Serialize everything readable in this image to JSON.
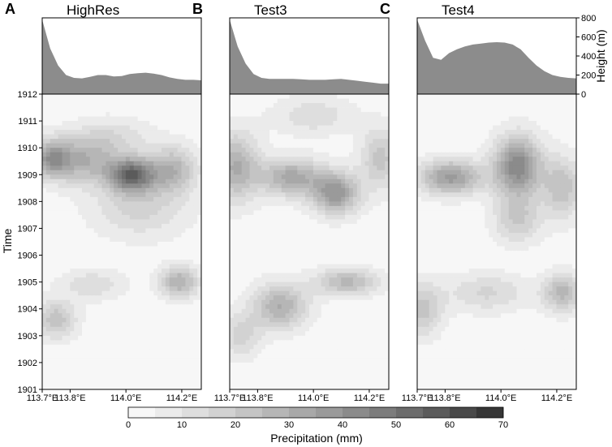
{
  "chart_data": {
    "type": "heatmap",
    "colorbar": {
      "label": "Precipitation (mm)",
      "ticks": [
        "0",
        "10",
        "20",
        "30",
        "40",
        "50",
        "60",
        "70"
      ],
      "levels": [
        0,
        5,
        10,
        15,
        20,
        25,
        30,
        35,
        40,
        45,
        50,
        55,
        60,
        65,
        70
      ],
      "colors": [
        "#f7f7f7",
        "#ebebeb",
        "#dedede",
        "#d2d2d2",
        "#c4c4c4",
        "#b6b6b6",
        "#a8a8a8",
        "#9a9a9a",
        "#8b8b8b",
        "#7c7c7c",
        "#6c6c6c",
        "#5b5b5b",
        "#494949",
        "#363636"
      ]
    },
    "y_axis": {
      "label": "Time",
      "ticks": [
        "1912",
        "1911",
        "1910",
        "1909",
        "1908",
        "1907",
        "1906",
        "1905",
        "1904",
        "1903",
        "1902",
        "1901"
      ]
    },
    "x_axis": {
      "ticks": [
        "113.7°E",
        "113.8°E",
        "114.0°E",
        "114.2°E"
      ],
      "lon_values": [
        113.7,
        113.8,
        114.0,
        114.2
      ],
      "range": [
        113.7,
        114.27
      ]
    },
    "height_axis": {
      "label": "Height (m)",
      "ticks": [
        "800",
        "600",
        "400",
        "200",
        "0"
      ],
      "range": [
        0,
        800
      ]
    },
    "panels": [
      {
        "letter": "A",
        "title": "HighRes",
        "terrain_m": [
          780,
          480,
          300,
          200,
          170,
          165,
          180,
          200,
          200,
          185,
          190,
          210,
          220,
          225,
          215,
          200,
          175,
          160,
          150,
          150,
          145
        ],
        "precip_blobs": [
          {
            "lon": 113.73,
            "time": 1909.6,
            "amp": 32,
            "slon": 0.05,
            "stime": 0.5
          },
          {
            "lon": 113.85,
            "time": 1909.5,
            "amp": 25,
            "slon": 0.08,
            "stime": 0.6
          },
          {
            "lon": 114.02,
            "time": 1909.0,
            "amp": 48,
            "slon": 0.06,
            "stime": 0.45
          },
          {
            "lon": 114.17,
            "time": 1909.2,
            "amp": 25,
            "slon": 0.06,
            "stime": 0.6
          },
          {
            "lon": 113.75,
            "time": 1903.6,
            "amp": 22,
            "slon": 0.05,
            "stime": 0.5
          },
          {
            "lon": 113.88,
            "time": 1904.9,
            "amp": 12,
            "slon": 0.08,
            "stime": 0.4
          },
          {
            "lon": 114.19,
            "time": 1905.0,
            "amp": 28,
            "slon": 0.05,
            "stime": 0.4
          },
          {
            "lon": 114.05,
            "time": 1907.8,
            "amp": 15,
            "slon": 0.12,
            "stime": 0.8
          },
          {
            "lon": 113.95,
            "time": 1910.4,
            "amp": 12,
            "slon": 0.1,
            "stime": 0.5
          }
        ]
      },
      {
        "letter": "B",
        "title": "Test3",
        "terrain_m": [
          780,
          500,
          320,
          210,
          170,
          160,
          160,
          160,
          160,
          155,
          150,
          150,
          150,
          155,
          160,
          150,
          140,
          130,
          120,
          110,
          110
        ],
        "precip_blobs": [
          {
            "lon": 113.72,
            "time": 1909.3,
            "amp": 28,
            "slon": 0.06,
            "stime": 0.9
          },
          {
            "lon": 113.92,
            "time": 1908.9,
            "amp": 30,
            "slon": 0.08,
            "stime": 0.5
          },
          {
            "lon": 114.08,
            "time": 1908.3,
            "amp": 36,
            "slon": 0.06,
            "stime": 0.55
          },
          {
            "lon": 114.24,
            "time": 1909.6,
            "amp": 20,
            "slon": 0.05,
            "stime": 0.8
          },
          {
            "lon": 113.88,
            "time": 1904.1,
            "amp": 28,
            "slon": 0.07,
            "stime": 0.6
          },
          {
            "lon": 114.12,
            "time": 1905.0,
            "amp": 25,
            "slon": 0.08,
            "stime": 0.35
          },
          {
            "lon": 113.74,
            "time": 1903.0,
            "amp": 15,
            "slon": 0.05,
            "stime": 0.6
          },
          {
            "lon": 114.0,
            "time": 1911.2,
            "amp": 12,
            "slon": 0.1,
            "stime": 0.5
          }
        ]
      },
      {
        "letter": "C",
        "title": "Test4",
        "terrain_m": [
          780,
          560,
          380,
          360,
          430,
          470,
          500,
          520,
          530,
          540,
          545,
          540,
          520,
          470,
          380,
          300,
          240,
          200,
          180,
          170,
          165
        ],
        "precip_blobs": [
          {
            "lon": 113.82,
            "time": 1908.9,
            "amp": 35,
            "slon": 0.08,
            "stime": 0.45
          },
          {
            "lon": 114.06,
            "time": 1909.3,
            "amp": 42,
            "slon": 0.06,
            "stime": 0.8
          },
          {
            "lon": 114.22,
            "time": 1908.5,
            "amp": 22,
            "slon": 0.05,
            "stime": 0.8
          },
          {
            "lon": 113.72,
            "time": 1904.0,
            "amp": 20,
            "slon": 0.05,
            "stime": 0.7
          },
          {
            "lon": 113.95,
            "time": 1904.6,
            "amp": 14,
            "slon": 0.1,
            "stime": 0.5
          },
          {
            "lon": 114.22,
            "time": 1904.6,
            "amp": 25,
            "slon": 0.05,
            "stime": 0.5
          },
          {
            "lon": 114.06,
            "time": 1907.3,
            "amp": 18,
            "slon": 0.06,
            "stime": 0.6
          }
        ]
      }
    ]
  }
}
